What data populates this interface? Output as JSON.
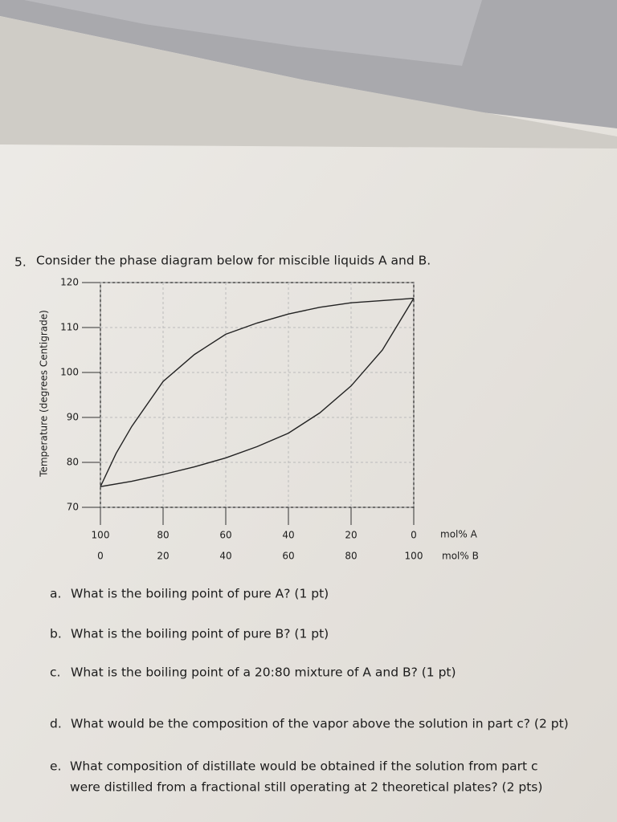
{
  "question": {
    "number": "5.",
    "text": "Consider the phase diagram below for miscible liquids A and B."
  },
  "chart_data": {
    "type": "line",
    "y_label": "Temperature (degrees Centigrade)",
    "x_label": "mol% B",
    "x2_label": "mol% A",
    "xlim": [
      0,
      100
    ],
    "xticks": [
      0,
      20,
      40,
      60,
      80,
      100
    ],
    "x2lim": [
      100,
      0
    ],
    "x2ticks": [
      100,
      80,
      60,
      40,
      20,
      0
    ],
    "ylim": [
      70,
      120
    ],
    "yticks": [
      70,
      80,
      90,
      100,
      110,
      120
    ],
    "grid": true,
    "series": [
      {
        "color": "#222222",
        "x": [
          0,
          10,
          20,
          30,
          40,
          50,
          60,
          70,
          80,
          90,
          100
        ],
        "values": [
          74.6,
          75.8,
          77.3,
          79,
          81,
          83.5,
          86.5,
          91,
          97,
          105,
          116.5
        ]
      },
      {
        "color": "#222222",
        "x": [
          0,
          5,
          10,
          20,
          30,
          40,
          50,
          60,
          70,
          80,
          90,
          100
        ],
        "values": [
          74.6,
          82,
          88,
          98,
          104,
          108.5,
          111,
          113,
          114.5,
          115.5,
          116,
          116.5
        ]
      }
    ]
  },
  "parts": [
    {
      "label": "a.",
      "text": "What is the boiling point of pure A? (1 pt)"
    },
    {
      "label": "b.",
      "text": "What is the boiling point of pure B? (1 pt)"
    },
    {
      "label": "c.",
      "text": "What is the boiling point of a 20:80 mixture of A and B? (1 pt)"
    },
    {
      "label": "d.",
      "text": "What would be the composition of the vapor above the solution in part c? (2 pt)"
    },
    {
      "label": "e.",
      "text": [
        "What composition of distillate would be obtained if the solution from part c",
        "were distilled from a fractional still operating at 2 theoretical plates? (2 pts)"
      ]
    }
  ]
}
